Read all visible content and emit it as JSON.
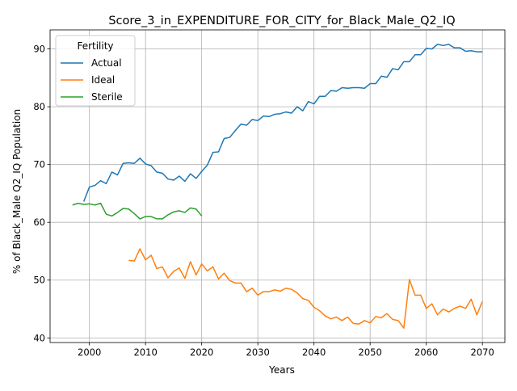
{
  "chart_data": {
    "type": "line",
    "title": "Score_3_in_EXPENDITURE_FOR_CITY_for_Black_Male_Q2_IQ",
    "xlabel": "Years",
    "ylabel": "% of Black_Male Q2_IQ Population",
    "xlim": [
      1993,
      2074
    ],
    "ylim": [
      39.2,
      93.3
    ],
    "xticks": [
      2000,
      2010,
      2020,
      2030,
      2040,
      2050,
      2060,
      2070
    ],
    "yticks": [
      40,
      50,
      60,
      70,
      80,
      90
    ],
    "grid": true,
    "legend": {
      "title": "Fertility",
      "placement": "upper-left"
    },
    "series": [
      {
        "name": "Actual",
        "color": "#1f77b4",
        "x": [
          1999,
          2000,
          2001,
          2002,
          2003,
          2004,
          2005,
          2006,
          2007,
          2008,
          2009,
          2010,
          2011,
          2012,
          2013,
          2014,
          2015,
          2016,
          2017,
          2018,
          2019,
          2020,
          2021,
          2022,
          2023,
          2024,
          2025,
          2026,
          2027,
          2028,
          2029,
          2030,
          2031,
          2032,
          2033,
          2034,
          2035,
          2036,
          2037,
          2038,
          2039,
          2040,
          2041,
          2042,
          2043,
          2044,
          2045,
          2046,
          2047,
          2048,
          2049,
          2050,
          2051,
          2052,
          2053,
          2054,
          2055,
          2056,
          2057,
          2058,
          2059,
          2060,
          2061,
          2062,
          2063,
          2064,
          2065,
          2066,
          2067,
          2068,
          2069,
          2070
        ],
        "values": [
          63.6,
          66.1,
          66.4,
          67.2,
          66.7,
          68.7,
          68.2,
          70.2,
          70.3,
          70.2,
          71.1,
          70.1,
          69.8,
          68.7,
          68.5,
          67.5,
          67.3,
          68.0,
          67.1,
          68.4,
          67.6,
          68.8,
          69.9,
          72.1,
          72.2,
          74.5,
          74.7,
          75.9,
          77.0,
          76.8,
          77.8,
          77.6,
          78.4,
          78.3,
          78.7,
          78.8,
          79.1,
          78.9,
          80.0,
          79.3,
          80.9,
          80.5,
          81.8,
          81.8,
          82.8,
          82.7,
          83.3,
          83.2,
          83.3,
          83.3,
          83.2,
          84.0,
          84.0,
          85.3,
          85.1,
          86.6,
          86.4,
          87.8,
          87.8,
          89.0,
          89.0,
          90.1,
          90.0,
          90.8,
          90.6,
          90.8,
          90.2,
          90.2,
          89.6,
          89.7,
          89.5,
          89.5
        ]
      },
      {
        "name": "Ideal",
        "color": "#ff7f0e",
        "x": [
          2007,
          2008,
          2009,
          2010,
          2011,
          2012,
          2013,
          2014,
          2015,
          2016,
          2017,
          2018,
          2019,
          2020,
          2021,
          2022,
          2023,
          2024,
          2025,
          2026,
          2027,
          2028,
          2029,
          2030,
          2031,
          2032,
          2033,
          2034,
          2035,
          2036,
          2037,
          2038,
          2039,
          2040,
          2041,
          2042,
          2043,
          2044,
          2045,
          2046,
          2047,
          2048,
          2049,
          2050,
          2051,
          2052,
          2053,
          2054,
          2055,
          2056,
          2057,
          2058,
          2059,
          2060,
          2061,
          2062,
          2063,
          2064,
          2065,
          2066,
          2067,
          2068,
          2069,
          2070
        ],
        "values": [
          53.4,
          53.3,
          55.4,
          53.5,
          54.3,
          52.0,
          52.3,
          50.4,
          51.5,
          52.1,
          50.3,
          53.2,
          50.9,
          52.8,
          51.6,
          52.3,
          50.2,
          51.2,
          49.9,
          49.5,
          49.5,
          48.0,
          48.6,
          47.4,
          48.0,
          48.0,
          48.3,
          48.1,
          48.6,
          48.4,
          47.8,
          46.8,
          46.5,
          45.3,
          44.7,
          43.8,
          43.3,
          43.6,
          43.0,
          43.6,
          42.5,
          42.4,
          43.0,
          42.6,
          43.7,
          43.5,
          44.2,
          43.2,
          43.0,
          41.7,
          50.1,
          47.4,
          47.4,
          45.1,
          45.9,
          44.0,
          45.0,
          44.5,
          45.1,
          45.5,
          45.1,
          46.7,
          44.0,
          46.3
        ]
      },
      {
        "name": "Sterile",
        "color": "#2ca02c",
        "x": [
          1997,
          1998,
          1999,
          2000,
          2001,
          2002,
          2003,
          2004,
          2005,
          2006,
          2007,
          2008,
          2009,
          2010,
          2011,
          2012,
          2013,
          2014,
          2015,
          2016,
          2017,
          2018,
          2019,
          2020
        ],
        "values": [
          63.0,
          63.3,
          63.1,
          63.2,
          63.0,
          63.3,
          61.4,
          61.1,
          61.7,
          62.4,
          62.3,
          61.5,
          60.6,
          61.0,
          61.0,
          60.6,
          60.6,
          61.3,
          61.8,
          62.0,
          61.7,
          62.5,
          62.3,
          61.1
        ]
      }
    ]
  }
}
